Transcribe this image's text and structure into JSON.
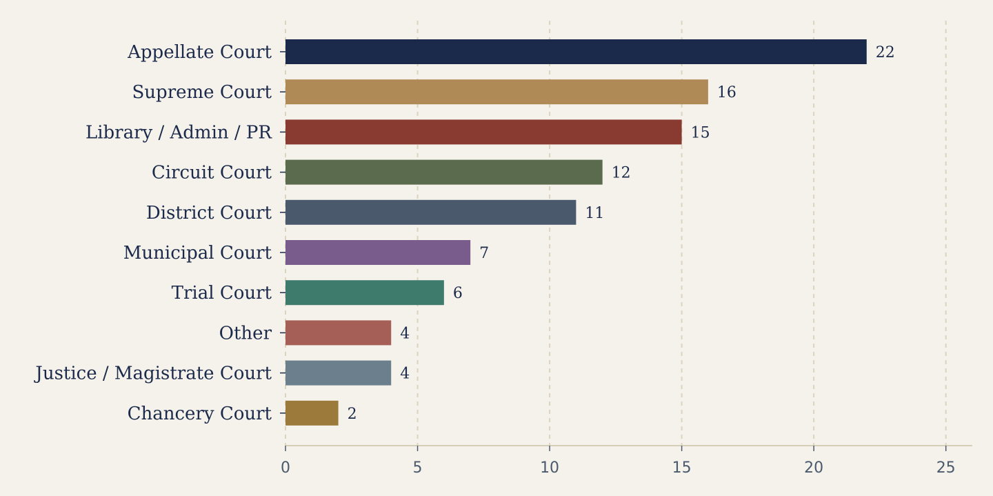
{
  "chart_data": {
    "type": "bar",
    "orientation": "horizontal",
    "categories": [
      "Appellate Court",
      "Supreme Court",
      "Library / Admin / PR",
      "Circuit Court",
      "District Court",
      "Municipal Court",
      "Trial Court",
      "Other",
      "Justice / Magistrate Court",
      "Chancery Court"
    ],
    "values": [
      22,
      16,
      15,
      12,
      11,
      7,
      6,
      4,
      4,
      2
    ],
    "colors": [
      "#1b2a4a",
      "#b08a56",
      "#8a3b31",
      "#5a6b4e",
      "#4a5a6c",
      "#7a5c8c",
      "#3e7b6c",
      "#a55f57",
      "#6b7f8c",
      "#9c7a3c"
    ],
    "xlim": [
      0,
      26
    ],
    "xticks": [
      0,
      5,
      10,
      15,
      20,
      25
    ],
    "grid": "vertical-dashed",
    "data_labels": true,
    "title": "",
    "xlabel": "",
    "ylabel": ""
  },
  "theme": {
    "background": "#f5f2eb",
    "text": "#1b2a4a",
    "tick_text": "#4a5a6c",
    "grid": "#dcd4bd",
    "axis": "#d5cfb8"
  }
}
